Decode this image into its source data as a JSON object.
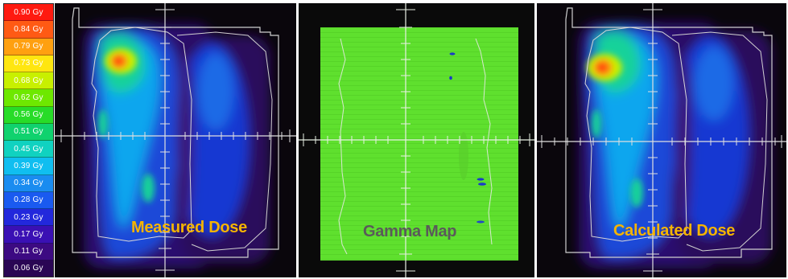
{
  "legend": {
    "items": [
      {
        "label": "0.90 Gy",
        "color": "#ff1a10"
      },
      {
        "label": "0.84 Gy",
        "color": "#ff5a14"
      },
      {
        "label": "0.79 Gy",
        "color": "#ffa010"
      },
      {
        "label": "0.73 Gy",
        "color": "#ffe610"
      },
      {
        "label": "0.68 Gy",
        "color": "#c8f000"
      },
      {
        "label": "0.62 Gy",
        "color": "#6ee800"
      },
      {
        "label": "0.56 Gy",
        "color": "#28dc28"
      },
      {
        "label": "0.51 Gy",
        "color": "#10d26e"
      },
      {
        "label": "0.45 Gy",
        "color": "#10d2c0"
      },
      {
        "label": "0.39 Gy",
        "color": "#10bef0"
      },
      {
        "label": "0.34 Gy",
        "color": "#1a8cf0"
      },
      {
        "label": "0.28 Gy",
        "color": "#1a5af0"
      },
      {
        "label": "0.23 Gy",
        "color": "#2228dc"
      },
      {
        "label": "0.17 Gy",
        "color": "#3a10b4"
      },
      {
        "label": "0.11 Gy",
        "color": "#3c0a82"
      },
      {
        "label": "0.06 Gy",
        "color": "#2a0654"
      }
    ]
  },
  "panels": {
    "measured": {
      "caption": "Measured Dose",
      "caption_color": "#f5b400"
    },
    "gamma": {
      "caption": "Gamma Map",
      "caption_color": "#5a5a5a"
    },
    "calculated": {
      "caption": "Calculated Dose",
      "caption_color": "#f5b400"
    }
  }
}
